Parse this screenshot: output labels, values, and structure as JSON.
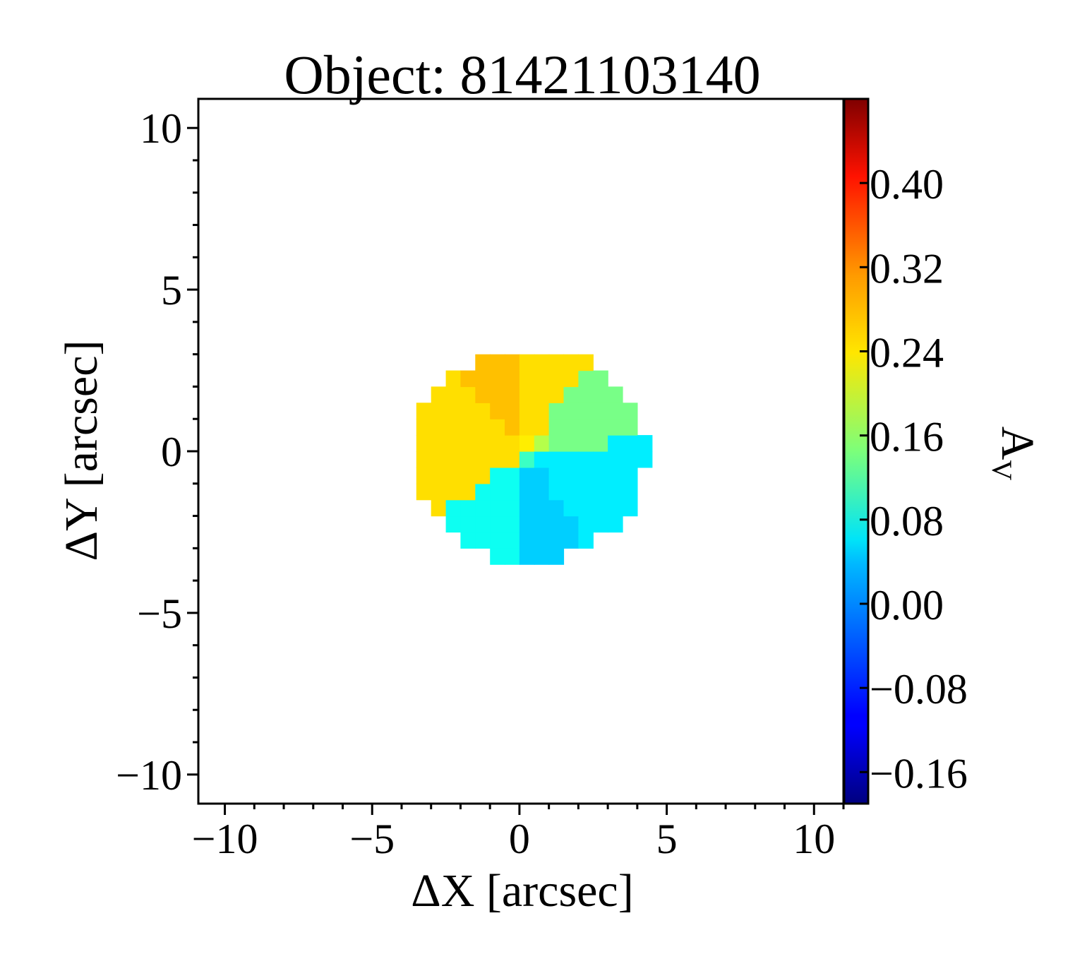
{
  "chart_data": {
    "type": "heatmap",
    "title": "Object: 81421103140",
    "xlabel": "ΔX [arcsec]",
    "ylabel": "ΔY [arcsec]",
    "xlim": [
      -10.9,
      11.0
    ],
    "ylim": [
      -10.9,
      10.9
    ],
    "x_ticks": [
      -10,
      -5,
      0,
      5,
      10
    ],
    "y_ticks": [
      -10,
      -5,
      0,
      5,
      10
    ],
    "x_tick_labels": [
      "−10",
      "−5",
      "0",
      "5",
      "10"
    ],
    "y_tick_labels": [
      "−10",
      "−5",
      "0",
      "5",
      "10"
    ],
    "colormap": "jet",
    "colorbar": {
      "label": "A",
      "label_subscript": "V",
      "range": [
        -0.19,
        0.48
      ],
      "ticks": [
        -0.16,
        -0.08,
        0.0,
        0.08,
        0.16,
        0.24,
        0.32,
        0.4
      ],
      "tick_labels": [
        "−0.16",
        "−0.08",
        "0.00",
        "0.08",
        "0.16",
        "0.24",
        "0.32",
        "0.40"
      ]
    },
    "cell_size_arcsec": 0.5,
    "disk": {
      "center": [
        0.3,
        -0.1
      ],
      "radii": [
        4.0,
        3.3
      ]
    },
    "sectors": [
      {
        "name": "upper-left",
        "from_deg": 95,
        "to_deg": 132,
        "value": 0.27
      },
      {
        "name": "top",
        "from_deg": 55,
        "to_deg": 95,
        "value": 0.25
      },
      {
        "name": "right-upper",
        "from_deg": 8,
        "to_deg": 55,
        "value": 0.14
      },
      {
        "name": "right-lower",
        "from_deg": -55,
        "to_deg": 8,
        "value": 0.05
      },
      {
        "name": "bottom",
        "from_deg": -95,
        "to_deg": -55,
        "value": 0.03
      },
      {
        "name": "lower-left",
        "from_deg": -150,
        "to_deg": -95,
        "value": 0.07
      },
      {
        "name": "left",
        "from_deg": 132,
        "to_deg": 210,
        "value": 0.25
      }
    ],
    "center_cells": [
      {
        "x": -0.25,
        "y": 0.0,
        "value": 0.14
      },
      {
        "x": 0.25,
        "y": 0.25,
        "value": 0.24
      },
      {
        "x": 0.75,
        "y": 0.25,
        "value": 0.18
      },
      {
        "x": 0.25,
        "y": -0.25,
        "value": 0.1
      }
    ]
  }
}
